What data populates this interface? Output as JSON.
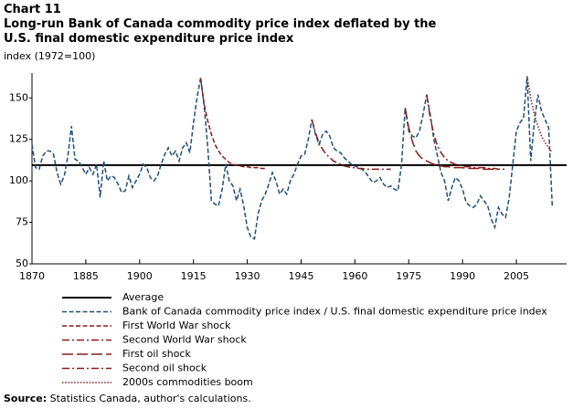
{
  "chart_data": {
    "type": "line",
    "label": "Chart 11",
    "title": "Long-run Bank of Canada commodity price index deflated by the U.S. final domestic expenditure price index",
    "y_label": "index (1972=100)",
    "source_label": "Source:",
    "source": "Statistics Canada, author's calculations.",
    "xlim": [
      1870,
      2019
    ],
    "xticks": [
      1870,
      1885,
      1900,
      1915,
      1930,
      1945,
      1960,
      1975,
      1990,
      2005
    ],
    "ylim": [
      50,
      165
    ],
    "yticks": [
      50,
      75,
      100,
      125,
      150
    ],
    "grid": false,
    "series": [
      {
        "name": "Average",
        "color": "#000000",
        "style": "solid",
        "x": [
          1870,
          2019
        ],
        "values": [
          109.5,
          109.5
        ]
      },
      {
        "name": "Bank of Canada commodity price index / U.S. final domestic expenditure price index",
        "color": "#1f4e79",
        "style": "dashed",
        "x": [
          1870,
          1871,
          1872,
          1873,
          1874,
          1875,
          1876,
          1877,
          1878,
          1879,
          1880,
          1881,
          1882,
          1883,
          1884,
          1885,
          1886,
          1887,
          1888,
          1889,
          1890,
          1891,
          1892,
          1893,
          1894,
          1895,
          1896,
          1897,
          1898,
          1899,
          1900,
          1901,
          1902,
          1903,
          1904,
          1905,
          1906,
          1907,
          1908,
          1909,
          1910,
          1911,
          1912,
          1913,
          1914,
          1915,
          1916,
          1917,
          1918,
          1919,
          1920,
          1921,
          1922,
          1923,
          1924,
          1925,
          1926,
          1927,
          1928,
          1929,
          1930,
          1931,
          1932,
          1933,
          1934,
          1935,
          1936,
          1937,
          1938,
          1939,
          1940,
          1941,
          1942,
          1943,
          1944,
          1945,
          1946,
          1947,
          1948,
          1949,
          1950,
          1951,
          1952,
          1953,
          1954,
          1955,
          1956,
          1957,
          1958,
          1959,
          1960,
          1961,
          1962,
          1963,
          1964,
          1965,
          1966,
          1967,
          1968,
          1969,
          1970,
          1971,
          1972,
          1973,
          1974,
          1975,
          1976,
          1977,
          1978,
          1979,
          1980,
          1981,
          1982,
          1983,
          1984,
          1985,
          1986,
          1987,
          1988,
          1989,
          1990,
          1991,
          1992,
          1993,
          1994,
          1995,
          1996,
          1997,
          1998,
          1999,
          2000,
          2001,
          2002,
          2003,
          2004,
          2005,
          2006,
          2007,
          2008,
          2009,
          2010,
          2011,
          2012,
          2013,
          2014,
          2015
        ],
        "values": [
          122,
          108,
          107,
          115,
          118,
          118,
          116,
          105,
          98,
          103,
          115,
          133,
          113,
          112,
          108,
          104,
          108,
          104,
          110,
          90,
          112,
          100,
          103,
          102,
          98,
          93,
          94,
          103,
          96,
          100,
          104,
          110,
          108,
          102,
          100,
          103,
          110,
          116,
          120,
          115,
          118,
          112,
          120,
          123,
          117,
          135,
          150,
          162,
          145,
          120,
          88,
          86,
          85,
          95,
          110,
          100,
          97,
          88,
          95,
          85,
          72,
          66,
          65,
          80,
          88,
          92,
          98,
          105,
          100,
          92,
          95,
          92,
          100,
          104,
          110,
          115,
          116,
          125,
          137,
          128,
          122,
          128,
          130,
          127,
          120,
          118,
          117,
          114,
          112,
          110,
          109,
          108,
          107,
          105,
          102,
          99,
          100,
          102,
          98,
          96,
          97,
          95,
          94,
          110,
          144,
          130,
          127,
          126,
          130,
          140,
          152,
          140,
          125,
          115,
          105,
          100,
          88,
          96,
          102,
          100,
          95,
          87,
          85,
          84,
          86,
          91,
          88,
          85,
          77,
          72,
          84,
          80,
          78,
          90,
          110,
          130,
          135,
          138,
          163,
          112,
          135,
          152,
          142,
          137,
          132,
          85
        ]
      },
      {
        "name": "First World War shock",
        "color": "#8b1a1a",
        "style": "dashed",
        "x": [
          1917,
          1918,
          1919,
          1920,
          1921,
          1922,
          1923,
          1924,
          1925,
          1926,
          1927,
          1928,
          1929,
          1930,
          1931,
          1932,
          1933,
          1934,
          1935
        ],
        "values": [
          162,
          146,
          136,
          128,
          122,
          118,
          115,
          113,
          111,
          110,
          109.5,
          109,
          108.5,
          108.5,
          108,
          108,
          108,
          107.5,
          107.5
        ]
      },
      {
        "name": "Second World War shock",
        "color": "#8b1a1a",
        "style": "dash-dot",
        "x": [
          1948,
          1949,
          1950,
          1951,
          1952,
          1953,
          1954,
          1955,
          1956,
          1957,
          1958,
          1959,
          1960,
          1961,
          1962,
          1963,
          1964,
          1965,
          1966,
          1967,
          1968,
          1969,
          1970
        ],
        "values": [
          137,
          129,
          123,
          119,
          116,
          114,
          112,
          111,
          110,
          109,
          108.5,
          108,
          108,
          107.5,
          107.5,
          107,
          107,
          107,
          107,
          107,
          107,
          107,
          107
        ]
      },
      {
        "name": "First oil shock",
        "color": "#8b1a1a",
        "style": "long-dash",
        "x": [
          1974,
          1975,
          1976,
          1977,
          1978,
          1979,
          1980,
          1981,
          1982,
          1983,
          1984,
          1985,
          1986,
          1987,
          1988,
          1989,
          1990,
          1991,
          1992,
          1993,
          1994,
          1995,
          1996,
          1997,
          1998,
          1999,
          2000
        ],
        "values": [
          144,
          132,
          124,
          118,
          115,
          113,
          112,
          111,
          110,
          109.5,
          109,
          108.5,
          108.5,
          108,
          108,
          108,
          108,
          107.5,
          107.5,
          107.5,
          107.5,
          107.5,
          107,
          107,
          107,
          107,
          107
        ]
      },
      {
        "name": "Second oil shock",
        "color": "#8b1a1a",
        "style": "dash-dot",
        "x": [
          1980,
          1981,
          1982,
          1983,
          1984,
          1985,
          1986,
          1987,
          1988,
          1989,
          1990,
          1991,
          1992,
          1993,
          1994,
          1995,
          1996,
          1997,
          1998,
          1999,
          2000,
          2001,
          2002
        ],
        "values": [
          152,
          138,
          128,
          121,
          117,
          114,
          112,
          111,
          110,
          109.5,
          109,
          108.5,
          108.5,
          108,
          108,
          108,
          108,
          107.5,
          107.5,
          107.5,
          107,
          107,
          107
        ]
      },
      {
        "name": "2000s commodities boom",
        "color": "#8b1a1a",
        "style": "dotted",
        "x": [
          2008,
          2009,
          2010,
          2011,
          2012,
          2013,
          2014,
          2015
        ],
        "values": [
          163,
          150,
          140,
          133,
          127,
          123,
          120,
          117
        ]
      }
    ]
  }
}
